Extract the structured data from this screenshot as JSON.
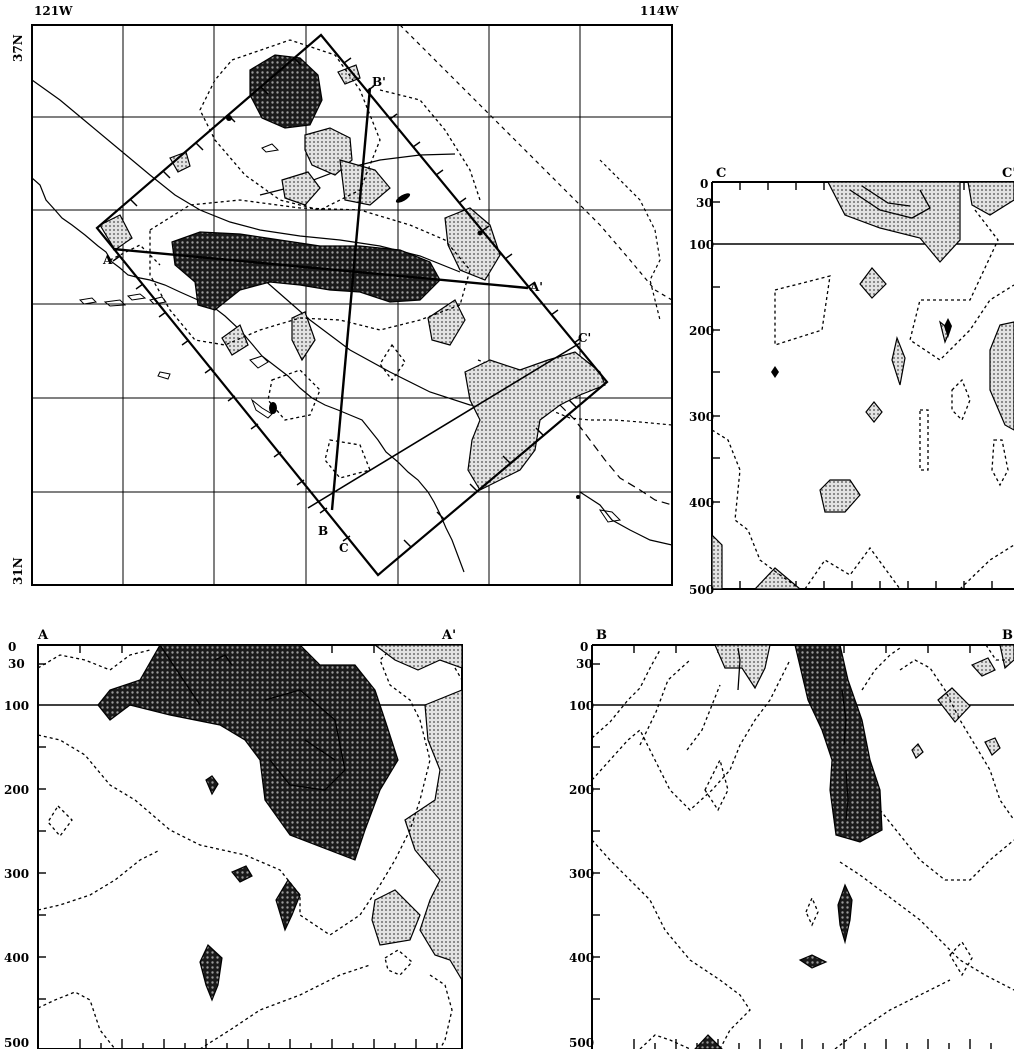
{
  "map": {
    "corner_labels": {
      "lon_west": "121W",
      "lon_east": "114W",
      "lat_north": "37N",
      "lat_south": "31N"
    },
    "section_endpoints": {
      "a_start": "A",
      "a_end": "A'",
      "b_start": "B",
      "b_end": "B'",
      "c_start": "C",
      "c_end": "C'"
    }
  },
  "sections": {
    "cc": {
      "label_left": "C",
      "label_right": "C'",
      "depth_ticks": [
        "0",
        "30",
        "100",
        "200",
        "300",
        "400",
        "500"
      ]
    },
    "aa": {
      "label_left": "A",
      "label_right": "A'",
      "depth_ticks": [
        "0",
        "30",
        "100",
        "200",
        "300",
        "400",
        "500"
      ]
    },
    "bb": {
      "label_left": "B",
      "label_right": "B'",
      "depth_ticks": [
        "0",
        "30",
        "100",
        "200",
        "300",
        "400",
        "500"
      ]
    }
  },
  "colors": {
    "ink": "#000000",
    "dark_fill": "#2a2a2a",
    "light_fill": "#b8b8b8",
    "paper": "#ffffff"
  }
}
